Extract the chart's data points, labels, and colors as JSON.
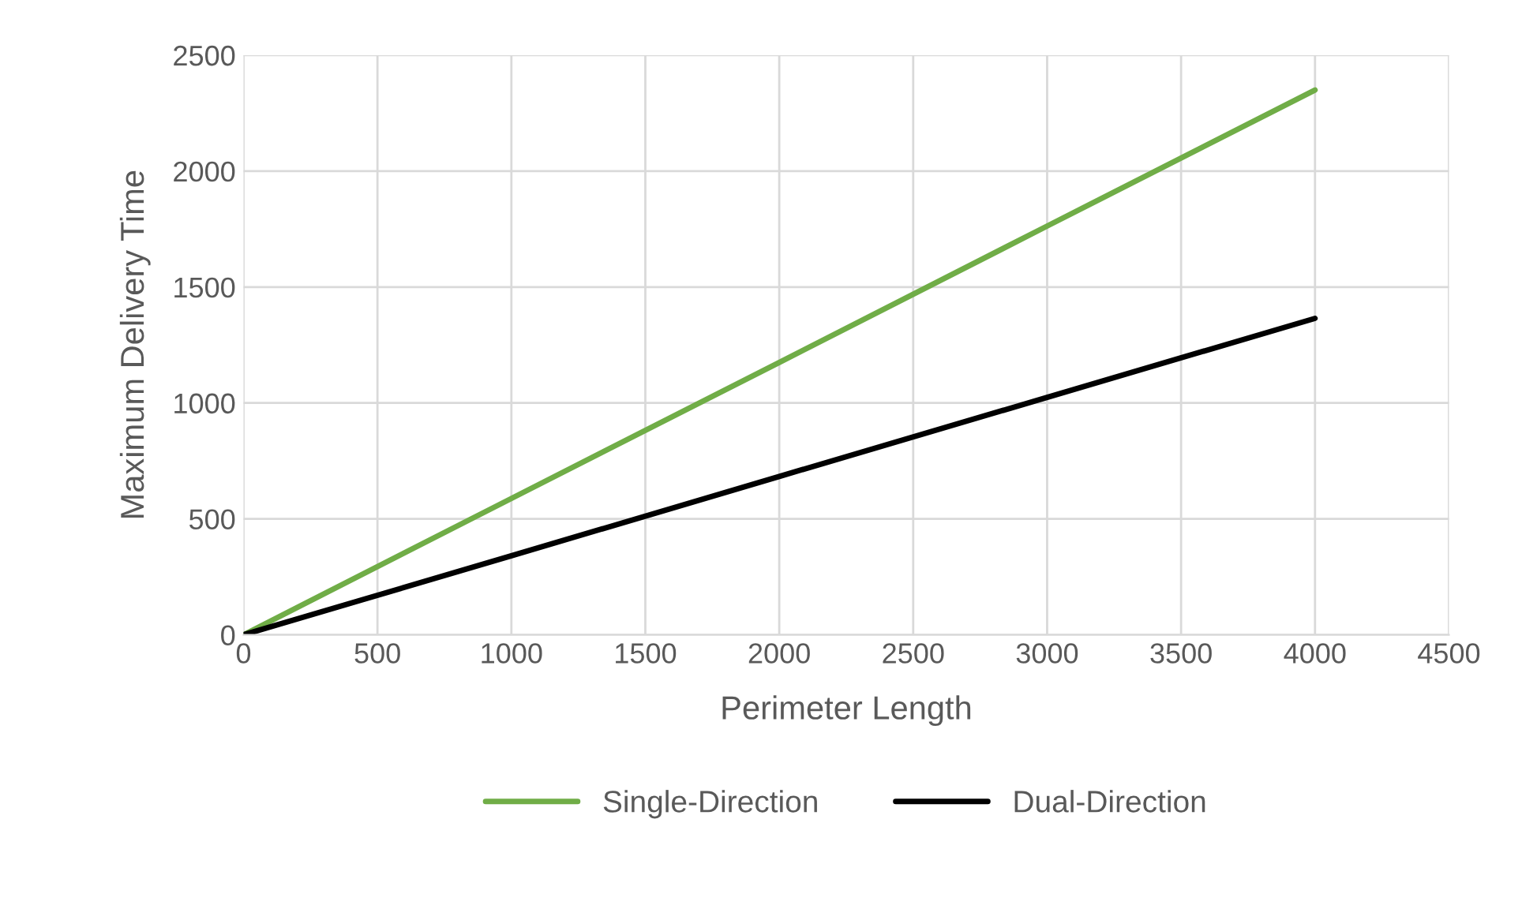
{
  "chart_data": {
    "type": "line",
    "xlabel": "Perimeter Length",
    "ylabel": "Maximum Delivery Time",
    "x": [
      0,
      1000,
      2000,
      3000,
      4000
    ],
    "series": [
      {
        "name": "Single-Direction",
        "color": "#70ad47",
        "values": [
          0,
          588,
          1175,
          1763,
          2350
        ]
      },
      {
        "name": "Dual-Direction",
        "color": "#000000",
        "values": [
          0,
          341,
          683,
          1024,
          1365
        ]
      }
    ],
    "xlim": [
      0,
      4500
    ],
    "xticks": [
      0,
      500,
      1000,
      1500,
      2000,
      2500,
      3000,
      3500,
      4000,
      4500
    ],
    "ylim": [
      0,
      2500
    ],
    "yticks": [
      0,
      500,
      1000,
      1500,
      2000,
      2500
    ],
    "grid": true,
    "legend": "bottom",
    "marker": "none",
    "line_style": "solid"
  }
}
